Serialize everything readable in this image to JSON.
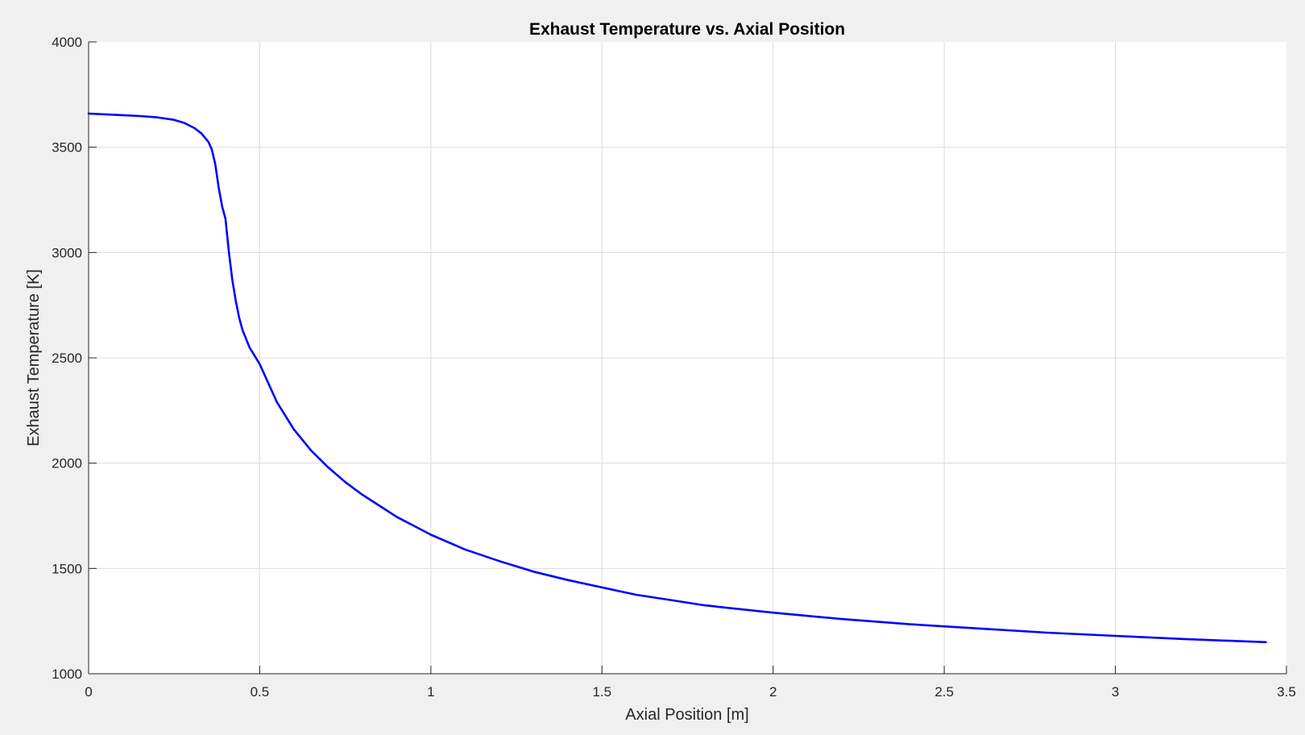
{
  "chart_data": {
    "type": "line",
    "title": "Exhaust Temperature vs. Axial Position",
    "xlabel": "Axial Position [m]",
    "ylabel": "Exhaust Temperature [K]",
    "xlim": [
      0,
      3.5
    ],
    "ylim": [
      1000,
      4000
    ],
    "xticks": [
      0,
      0.5,
      1,
      1.5,
      2,
      2.5,
      3,
      3.5
    ],
    "xtick_labels": [
      "0",
      "0.5",
      "1",
      "1.5",
      "2",
      "2.5",
      "3",
      "3.5"
    ],
    "yticks": [
      1000,
      1500,
      2000,
      2500,
      3000,
      3500,
      4000
    ],
    "ytick_labels": [
      "1000",
      "1500",
      "2000",
      "2500",
      "3000",
      "3500",
      "4000"
    ],
    "grid": true,
    "colors": {
      "line": "#0000ff",
      "background": "#f0f0f0",
      "plot_area": "#ffffff",
      "grid": "#dcdcdc",
      "axis": "#262626"
    },
    "series": [
      {
        "x": [
          0,
          0.05,
          0.1,
          0.15,
          0.2,
          0.25,
          0.28,
          0.31,
          0.33,
          0.35,
          0.36,
          0.37,
          0.38,
          0.39,
          0.4,
          0.41,
          0.42,
          0.43,
          0.44,
          0.45,
          0.47,
          0.5,
          0.55,
          0.6,
          0.65,
          0.7,
          0.75,
          0.8,
          0.9,
          1.0,
          1.1,
          1.2,
          1.3,
          1.4,
          1.5,
          1.6,
          1.7,
          1.8,
          2.0,
          2.2,
          2.4,
          2.6,
          2.8,
          3.0,
          3.2,
          3.44
        ],
        "values": [
          3660,
          3656,
          3652,
          3648,
          3642,
          3630,
          3615,
          3590,
          3565,
          3525,
          3490,
          3420,
          3310,
          3220,
          3160,
          3000,
          2870,
          2770,
          2690,
          2630,
          2550,
          2470,
          2290,
          2160,
          2060,
          1980,
          1910,
          1850,
          1745,
          1660,
          1590,
          1535,
          1485,
          1445,
          1410,
          1375,
          1350,
          1325,
          1290,
          1260,
          1235,
          1215,
          1195,
          1180,
          1165,
          1150
        ]
      }
    ]
  }
}
